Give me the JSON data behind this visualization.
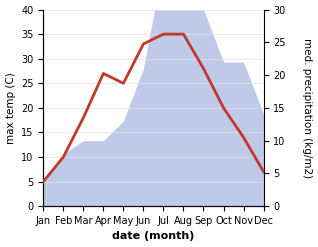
{
  "months": [
    "Jan",
    "Feb",
    "Mar",
    "Apr",
    "May",
    "Jun",
    "Jul",
    "Aug",
    "Sep",
    "Oct",
    "Nov",
    "Dec"
  ],
  "max_temp": [
    5,
    10,
    18,
    27,
    25,
    33,
    35,
    35,
    28,
    20,
    14,
    7
  ],
  "precipitation": [
    4,
    8,
    10,
    10,
    13,
    21,
    37,
    35,
    30,
    22,
    22,
    14
  ],
  "temp_color": "#c0392b",
  "precip_fill_color": "#bfc9e8",
  "temp_ylim": [
    0,
    40
  ],
  "precip_ylim": [
    0,
    30
  ],
  "xlabel": "date (month)",
  "ylabel_left": "max temp (C)",
  "ylabel_right": "med. precipitation (kg/m2)",
  "background_color": "#ffffff",
  "temp_linewidth": 2.0,
  "xlabel_fontsize": 8,
  "ylabel_fontsize": 7.5,
  "tick_fontsize": 7
}
